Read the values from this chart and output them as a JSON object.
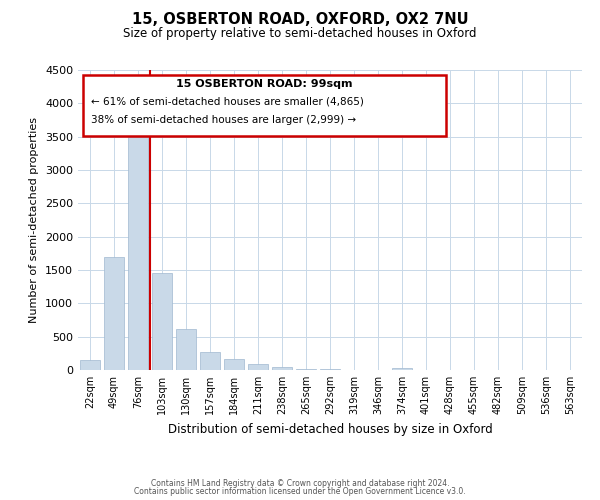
{
  "title": "15, OSBERTON ROAD, OXFORD, OX2 7NU",
  "subtitle": "Size of property relative to semi-detached houses in Oxford",
  "xlabel": "Distribution of semi-detached houses by size in Oxford",
  "ylabel": "Number of semi-detached properties",
  "bin_labels": [
    "22sqm",
    "49sqm",
    "76sqm",
    "103sqm",
    "130sqm",
    "157sqm",
    "184sqm",
    "211sqm",
    "238sqm",
    "265sqm",
    "292sqm",
    "319sqm",
    "346sqm",
    "374sqm",
    "401sqm",
    "428sqm",
    "455sqm",
    "482sqm",
    "509sqm",
    "536sqm",
    "563sqm"
  ],
  "bar_values": [
    150,
    1700,
    3500,
    1450,
    620,
    270,
    160,
    90,
    40,
    15,
    8,
    5,
    3,
    35,
    0,
    0,
    0,
    0,
    0,
    0,
    0
  ],
  "bar_color": "#c9d9e8",
  "bar_edgecolor": "#a0b8d0",
  "ylim": [
    0,
    4500
  ],
  "yticks": [
    0,
    500,
    1000,
    1500,
    2000,
    2500,
    3000,
    3500,
    4000,
    4500
  ],
  "property_line_x": 2.5,
  "property_line_color": "#cc0000",
  "annotation_title": "15 OSBERTON ROAD: 99sqm",
  "annotation_line1": "← 61% of semi-detached houses are smaller (4,865)",
  "annotation_line2": "38% of semi-detached houses are larger (2,999) →",
  "annotation_box_color": "#cc0000",
  "footer_line1": "Contains HM Land Registry data © Crown copyright and database right 2024.",
  "footer_line2": "Contains public sector information licensed under the Open Government Licence v3.0.",
  "background_color": "#ffffff",
  "grid_color": "#c8d8e8"
}
